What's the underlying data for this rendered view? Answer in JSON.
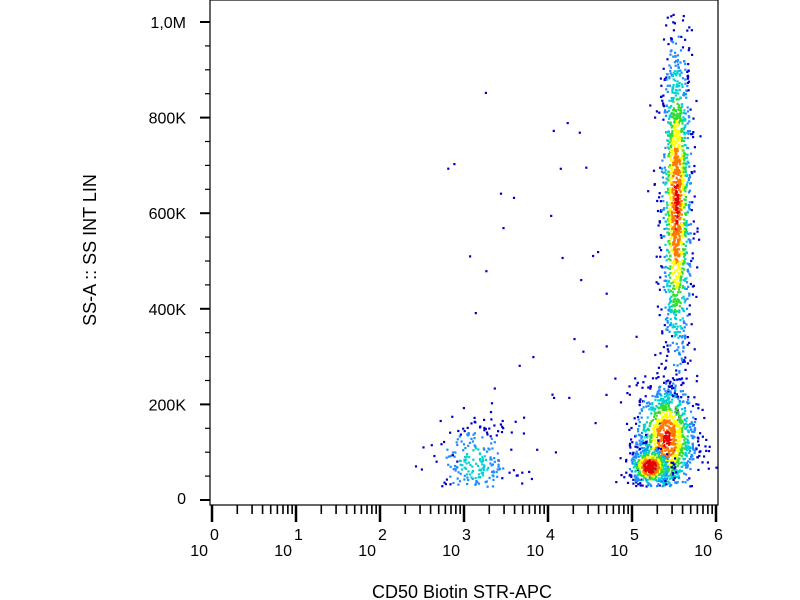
{
  "chart_data": {
    "type": "scatter",
    "style": "density-colored flow cytometry dot plot",
    "title": "",
    "xlabel": "CD50 Biotin STR-APC",
    "ylabel": "SS-A :: SS INT LIN",
    "x_scale": "log",
    "y_scale": "linear",
    "xlim": [
      1,
      1000000
    ],
    "ylim": [
      0,
      1020000
    ],
    "grid": false,
    "legend": "none",
    "x_tick_labels": [
      {
        "base": "10",
        "exp": "0",
        "value": 1
      },
      {
        "base": "10",
        "exp": "1",
        "value": 10
      },
      {
        "base": "10",
        "exp": "2",
        "value": 100
      },
      {
        "base": "10",
        "exp": "3",
        "value": 1000
      },
      {
        "base": "10",
        "exp": "4",
        "value": 10000
      },
      {
        "base": "10",
        "exp": "5",
        "value": 100000
      },
      {
        "base": "10",
        "exp": "6",
        "value": 1000000
      }
    ],
    "y_ticks": [
      {
        "label": "0",
        "value": 0
      },
      {
        "label": "200K",
        "value": 200000
      },
      {
        "label": "400K",
        "value": 400000
      },
      {
        "label": "600K",
        "value": 600000
      },
      {
        "label": "800K",
        "value": 800000
      },
      {
        "label": "1,0M",
        "value": 1000000
      }
    ],
    "density_colors": [
      "#0000c8",
      "#1e8cff",
      "#00d2d2",
      "#32dc32",
      "#ffff00",
      "#ff7800",
      "#e60000"
    ],
    "populations": [
      {
        "x_center": 330000,
        "y_center": 620000,
        "x_sd_decades": 0.09,
        "y_sd": 180000,
        "count": 1400,
        "density": "high"
      },
      {
        "x_center": 250000,
        "y_center": 130000,
        "x_sd_decades": 0.18,
        "y_sd": 60000,
        "count": 1100,
        "density": "high"
      },
      {
        "x_center": 160000,
        "y_center": 72000,
        "x_sd_decades": 0.12,
        "y_sd": 20000,
        "count": 450,
        "density": "very-high"
      },
      {
        "x_center": 1300,
        "y_center": 80000,
        "x_sd_decades": 0.25,
        "y_sd": 45000,
        "count": 260,
        "density": "low"
      },
      {
        "x_center": 5000,
        "y_center": 300000,
        "x_sd_decades": 0.5,
        "y_sd": 200000,
        "count": 35,
        "density": "sparse"
      }
    ]
  }
}
